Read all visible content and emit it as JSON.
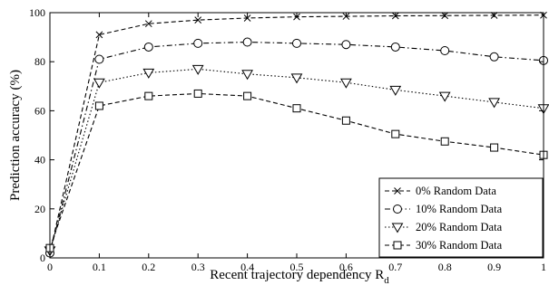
{
  "chart_data": {
    "type": "line",
    "title": "",
    "xlabel": "Recent trajectory dependency R",
    "xlabel_subscript": "d",
    "ylabel": "Prediction accuracy (%)",
    "xlim": [
      0,
      1
    ],
    "ylim": [
      0,
      100
    ],
    "x": [
      0,
      0.1,
      0.2,
      0.3,
      0.4,
      0.5,
      0.6,
      0.7,
      0.8,
      0.9,
      1
    ],
    "x_tick_labels": [
      "0",
      "0.1",
      "0.2",
      "0.3",
      "0.4",
      "0.5",
      "0.6",
      "0.7",
      "0.8",
      "0.9",
      "1"
    ],
    "y_ticks": [
      0,
      20,
      40,
      60,
      80,
      100
    ],
    "y_tick_labels": [
      "0",
      "20",
      "40",
      "60",
      "80",
      "100"
    ],
    "grid": false,
    "legend_position": "bottom-right",
    "series": [
      {
        "name": "0% Random Data",
        "marker": "x",
        "line_style": "dashed",
        "values": [
          2,
          91,
          95.5,
          97,
          97.8,
          98.3,
          98.5,
          98.7,
          98.8,
          98.9,
          99
        ]
      },
      {
        "name": "10% Random Data",
        "marker": "circle",
        "line_style": "dash-dot",
        "values": [
          2,
          81,
          86,
          87.5,
          88,
          87.5,
          87,
          86,
          84.5,
          82,
          80.5
        ]
      },
      {
        "name": "20% Random Data",
        "marker": "triangle-down",
        "line_style": "dotted",
        "values": [
          3,
          71.5,
          75.5,
          77,
          75,
          73.5,
          71.5,
          68.5,
          66,
          63.5,
          61
        ]
      },
      {
        "name": "30% Random Data",
        "marker": "square",
        "line_style": "dashed",
        "values": [
          4,
          62,
          66,
          67,
          66,
          61,
          56,
          50.5,
          47.5,
          45,
          42
        ]
      }
    ]
  }
}
